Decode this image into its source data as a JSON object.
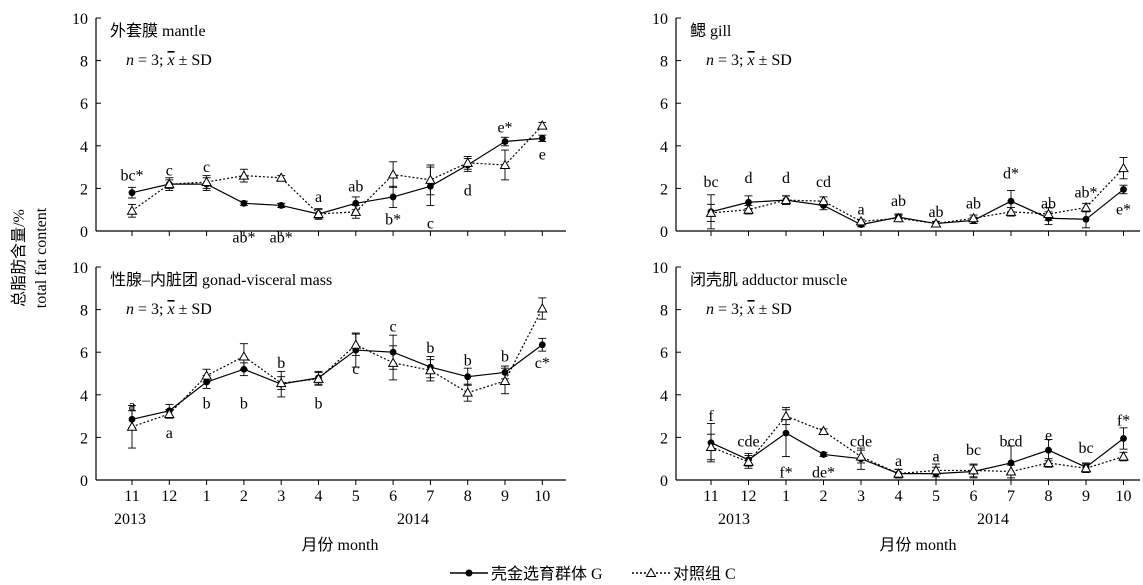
{
  "figure": {
    "ylabel_line1": "总脂肪含量/%",
    "ylabel_line2": "total fat content",
    "xlabel": "月份 month",
    "year_labels": [
      "2013",
      "2014"
    ],
    "legend": {
      "g_label": "壳金选育群体 G",
      "c_label": "对照组 C"
    }
  },
  "chart_data": [
    {
      "type": "line",
      "panel": "top-left",
      "title": "外套膜 mantle",
      "stats_n": "n",
      "stats_rest": " = 3; ",
      "stats_x": "x",
      "stats_sd": " ± SD",
      "categories": [
        "11",
        "12",
        "1",
        "2",
        "3",
        "4",
        "5",
        "6",
        "7",
        "8",
        "9",
        "10"
      ],
      "ylim": [
        0,
        10
      ],
      "yticks": [
        "0",
        "2",
        "4",
        "6",
        "8",
        "10"
      ],
      "show_x_axis_labels": false,
      "series": [
        {
          "name": "壳金选育群体 G",
          "style": "solid-dot",
          "values": [
            1.8,
            2.2,
            2.2,
            1.3,
            1.2,
            0.8,
            1.3,
            1.6,
            2.1,
            3.1,
            4.2,
            4.35
          ],
          "errors": [
            0.25,
            0.3,
            0.3,
            0.1,
            0.1,
            0.25,
            0.3,
            0.5,
            0.9,
            0.3,
            0.2,
            0.15
          ]
        },
        {
          "name": "对照组 C",
          "style": "dotted-triangle",
          "values": [
            0.95,
            2.2,
            2.3,
            2.6,
            2.5,
            0.8,
            0.9,
            2.65,
            2.4,
            3.2,
            3.1,
            4.95
          ],
          "errors": [
            0.3,
            0.2,
            0.3,
            0.3,
            0.1,
            0.2,
            0.3,
            0.6,
            0.7,
            0.3,
            0.7,
            0.15
          ]
        }
      ],
      "annotations": [
        {
          "cat": "11",
          "y": 2.6,
          "text": "bc*"
        },
        {
          "cat": "12",
          "y": 2.85,
          "text": "c"
        },
        {
          "cat": "1",
          "y": 3.0,
          "text": "c"
        },
        {
          "cat": "2",
          "y": -0.3,
          "text": "ab*"
        },
        {
          "cat": "3",
          "y": -0.3,
          "text": "ab*"
        },
        {
          "cat": "4",
          "y": 1.6,
          "text": "a"
        },
        {
          "cat": "5",
          "y": 2.1,
          "text": "ab"
        },
        {
          "cat": "6",
          "y": 0.55,
          "text": "b*"
        },
        {
          "cat": "7",
          "y": 0.35,
          "text": "c"
        },
        {
          "cat": "8",
          "y": 1.9,
          "text": "d"
        },
        {
          "cat": "9",
          "y": 4.85,
          "text": "e*"
        },
        {
          "cat": "10",
          "y": 3.6,
          "text": "e"
        }
      ]
    },
    {
      "type": "line",
      "panel": "top-right",
      "title": "鳃 gill",
      "stats_n": "n",
      "stats_rest": " = 3; ",
      "stats_x": "x",
      "stats_sd": " ± SD",
      "categories": [
        "11",
        "12",
        "1",
        "2",
        "3",
        "4",
        "5",
        "6",
        "7",
        "8",
        "9",
        "10"
      ],
      "ylim": [
        0,
        10
      ],
      "yticks": [
        "0",
        "2",
        "4",
        "6",
        "8",
        "10"
      ],
      "show_x_axis_labels": false,
      "series": [
        {
          "name": "壳金选育群体 G",
          "style": "solid-dot",
          "values": [
            0.9,
            1.35,
            1.45,
            1.2,
            0.3,
            0.65,
            0.35,
            0.5,
            1.4,
            0.6,
            0.55,
            1.95
          ],
          "errors": [
            0.8,
            0.3,
            0.2,
            0.2,
            0.1,
            0.15,
            0.1,
            0.15,
            0.5,
            0.3,
            0.4,
            0.2
          ]
        },
        {
          "name": "对照组 C",
          "style": "dotted-triangle",
          "values": [
            0.85,
            1.0,
            1.45,
            1.4,
            0.45,
            0.6,
            0.35,
            0.6,
            0.9,
            0.8,
            1.1,
            2.95
          ],
          "errors": [
            0.4,
            0.2,
            0.2,
            0.2,
            0.1,
            0.15,
            0.1,
            0.15,
            0.2,
            0.3,
            0.2,
            0.5
          ]
        }
      ],
      "annotations": [
        {
          "cat": "11",
          "y": 2.3,
          "text": "bc"
        },
        {
          "cat": "12",
          "y": 2.5,
          "text": "d"
        },
        {
          "cat": "1",
          "y": 2.5,
          "text": "d"
        },
        {
          "cat": "2",
          "y": 2.3,
          "text": "cd"
        },
        {
          "cat": "3",
          "y": 1.0,
          "text": "a"
        },
        {
          "cat": "4",
          "y": 1.4,
          "text": "ab"
        },
        {
          "cat": "5",
          "y": 0.9,
          "text": "ab"
        },
        {
          "cat": "6",
          "y": 1.3,
          "text": "ab"
        },
        {
          "cat": "7",
          "y": 2.7,
          "text": "d*"
        },
        {
          "cat": "8",
          "y": 1.3,
          "text": "ab"
        },
        {
          "cat": "9",
          "y": 1.8,
          "text": "ab*"
        },
        {
          "cat": "10",
          "y": 1.0,
          "text": "e*"
        }
      ]
    },
    {
      "type": "line",
      "panel": "bottom-left",
      "title": "性腺–内脏团 gonad-visceral mass",
      "stats_n": "n",
      "stats_rest": " = 3; ",
      "stats_x": "x",
      "stats_sd": " ± SD",
      "categories": [
        "11",
        "12",
        "1",
        "2",
        "3",
        "4",
        "5",
        "6",
        "7",
        "8",
        "9",
        "10"
      ],
      "ylim": [
        0,
        10
      ],
      "yticks": [
        "0",
        "2",
        "4",
        "6",
        "8",
        "10"
      ],
      "show_x_axis_labels": true,
      "series": [
        {
          "name": "壳金选育群体 G",
          "style": "solid-dot",
          "values": [
            2.85,
            3.25,
            4.6,
            5.2,
            4.5,
            4.8,
            6.1,
            6.0,
            5.3,
            4.85,
            5.05,
            6.35
          ],
          "errors": [
            0.4,
            0.3,
            0.3,
            0.3,
            0.6,
            0.3,
            0.8,
            0.8,
            0.5,
            0.4,
            0.3,
            0.3
          ]
        },
        {
          "name": "对照组 C",
          "style": "dotted-triangle",
          "values": [
            2.5,
            3.1,
            4.9,
            5.8,
            4.55,
            4.75,
            6.35,
            5.5,
            5.15,
            4.1,
            4.65,
            8.05
          ],
          "errors": [
            1.0,
            0.2,
            0.3,
            0.6,
            0.3,
            0.3,
            0.5,
            0.8,
            0.5,
            0.4,
            0.6,
            0.5
          ]
        }
      ],
      "annotations": [
        {
          "cat": "11",
          "y": 3.5,
          "text": "a"
        },
        {
          "cat": "12",
          "y": 2.2,
          "text": "a"
        },
        {
          "cat": "1",
          "y": 3.6,
          "text": "b"
        },
        {
          "cat": "2",
          "y": 3.6,
          "text": "b"
        },
        {
          "cat": "3",
          "y": 5.5,
          "text": "b"
        },
        {
          "cat": "4",
          "y": 3.6,
          "text": "b"
        },
        {
          "cat": "5",
          "y": 5.2,
          "text": "c"
        },
        {
          "cat": "6",
          "y": 7.2,
          "text": "c"
        },
        {
          "cat": "7",
          "y": 6.2,
          "text": "b"
        },
        {
          "cat": "8",
          "y": 5.6,
          "text": "b"
        },
        {
          "cat": "9",
          "y": 5.8,
          "text": "b"
        },
        {
          "cat": "10",
          "y": 5.5,
          "text": "c*"
        }
      ]
    },
    {
      "type": "line",
      "panel": "bottom-right",
      "title": "闭壳肌 adductor muscle",
      "stats_n": "n",
      "stats_rest": " = 3; ",
      "stats_x": "x",
      "stats_sd": " ± SD",
      "categories": [
        "11",
        "12",
        "1",
        "2",
        "3",
        "4",
        "5",
        "6",
        "7",
        "8",
        "9",
        "10"
      ],
      "ylim": [
        0,
        10
      ],
      "yticks": [
        "0",
        "2",
        "4",
        "6",
        "8",
        "10"
      ],
      "show_x_axis_labels": true,
      "series": [
        {
          "name": "壳金选育群体 G",
          "style": "solid-dot",
          "values": [
            1.75,
            0.95,
            2.2,
            1.2,
            1.0,
            0.3,
            0.3,
            0.4,
            0.8,
            1.4,
            0.6,
            1.95
          ],
          "errors": [
            0.9,
            0.3,
            1.1,
            0.1,
            0.5,
            0.2,
            0.3,
            0.3,
            0.8,
            0.5,
            0.2,
            0.5
          ]
        },
        {
          "name": "对照组 C",
          "style": "dotted-triangle",
          "values": [
            1.55,
            0.85,
            3.0,
            2.3,
            1.1,
            0.3,
            0.45,
            0.45,
            0.4,
            0.8,
            0.55,
            1.1
          ],
          "errors": [
            0.6,
            0.3,
            0.4,
            0.1,
            0.3,
            0.2,
            0.3,
            0.3,
            0.3,
            0.2,
            0.2,
            0.2
          ]
        }
      ],
      "annotations": [
        {
          "cat": "11",
          "y": 3.0,
          "text": "f"
        },
        {
          "cat": "12",
          "y": 1.8,
          "text": "cde"
        },
        {
          "cat": "1",
          "y": 0.35,
          "text": "f*"
        },
        {
          "cat": "2",
          "y": 0.35,
          "text": "de*"
        },
        {
          "cat": "3",
          "y": 1.8,
          "text": "cde"
        },
        {
          "cat": "4",
          "y": 0.9,
          "text": "a"
        },
        {
          "cat": "5",
          "y": 1.1,
          "text": "a"
        },
        {
          "cat": "6",
          "y": 1.4,
          "text": "bc"
        },
        {
          "cat": "7",
          "y": 1.8,
          "text": "bcd"
        },
        {
          "cat": "8",
          "y": 2.1,
          "text": "e"
        },
        {
          "cat": "9",
          "y": 1.5,
          "text": "bc"
        },
        {
          "cat": "10",
          "y": 2.8,
          "text": "f*"
        }
      ]
    }
  ]
}
